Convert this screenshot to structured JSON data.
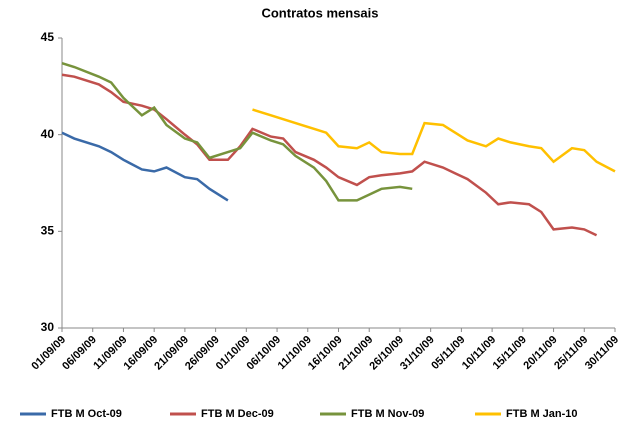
{
  "chart_data": {
    "type": "line",
    "title": "Contratos mensais",
    "x": [
      "01/09/09",
      "03/09/09",
      "07/09/09",
      "09/09/09",
      "11/09/09",
      "14/09/09",
      "16/09/09",
      "18/09/09",
      "21/09/09",
      "23/09/09",
      "25/09/09",
      "28/09/09",
      "30/09/09",
      "02/10/09",
      "05/10/09",
      "07/10/09",
      "09/10/09",
      "12/10/09",
      "14/10/09",
      "16/10/09",
      "19/10/09",
      "21/10/09",
      "23/10/09",
      "26/10/09",
      "28/10/09",
      "30/10/09",
      "02/11/09",
      "04/11/09",
      "06/11/09",
      "09/11/09",
      "11/11/09",
      "13/11/09",
      "16/11/09",
      "18/11/09",
      "20/11/09",
      "23/11/09",
      "25/11/09",
      "27/11/09",
      "30/11/09"
    ],
    "series": [
      {
        "name": "FTB M Oct-09",
        "color": "#3a6aa8",
        "values": [
          40.1,
          39.8,
          39.4,
          39.1,
          38.7,
          38.2,
          38.1,
          38.3,
          37.8,
          37.7,
          37.2,
          36.6,
          null,
          null,
          null,
          null,
          null,
          null,
          null,
          null,
          null,
          null,
          null,
          null,
          null,
          null,
          null,
          null,
          null,
          null,
          null,
          null,
          null,
          null,
          null,
          null,
          null,
          null,
          null
        ]
      },
      {
        "name": "FTB M Dec-09",
        "color": "#c0504d",
        "values": [
          43.1,
          43.0,
          42.6,
          42.2,
          41.7,
          41.5,
          41.3,
          40.8,
          40.0,
          39.5,
          38.7,
          38.7,
          39.4,
          40.3,
          39.9,
          39.8,
          39.1,
          38.7,
          38.3,
          37.8,
          37.4,
          37.8,
          37.9,
          38.0,
          38.1,
          38.6,
          38.3,
          38.0,
          37.7,
          37.0,
          36.4,
          36.5,
          36.4,
          36.0,
          35.1,
          35.2,
          35.1,
          34.8,
          null
        ]
      },
      {
        "name": "FTB M Nov-09",
        "color": "#77933c",
        "values": [
          43.7,
          43.5,
          43.0,
          42.7,
          41.9,
          41.0,
          41.4,
          40.5,
          39.8,
          39.6,
          38.8,
          39.1,
          39.3,
          40.1,
          39.7,
          39.5,
          38.9,
          38.3,
          37.6,
          36.6,
          36.6,
          36.9,
          37.2,
          37.3,
          37.2,
          null,
          null,
          null,
          null,
          null,
          null,
          null,
          null,
          null,
          null,
          null,
          null,
          null,
          null
        ]
      },
      {
        "name": "FTB M Jan-10",
        "color": "#ffc000",
        "values": [
          null,
          null,
          null,
          null,
          null,
          null,
          null,
          null,
          null,
          null,
          null,
          null,
          null,
          41.3,
          41.0,
          40.8,
          40.6,
          40.3,
          40.1,
          39.4,
          39.3,
          39.6,
          39.1,
          39.0,
          39.0,
          40.6,
          40.5,
          40.1,
          39.7,
          39.4,
          39.8,
          39.6,
          39.4,
          39.3,
          38.6,
          39.3,
          39.2,
          38.6,
          38.1
        ]
      }
    ],
    "xlim": [
      "01/09/09",
      "30/11/09"
    ],
    "xticks": [
      "01/09/09",
      "06/09/09",
      "11/09/09",
      "16/09/09",
      "21/09/09",
      "26/09/09",
      "01/10/09",
      "06/10/09",
      "11/10/09",
      "16/10/09",
      "21/10/09",
      "26/10/09",
      "31/10/09",
      "05/11/09",
      "10/11/09",
      "15/11/09",
      "20/11/09",
      "25/11/09",
      "30/11/09"
    ],
    "ylim": [
      30,
      45
    ],
    "yticks": [
      30,
      35,
      40,
      45
    ],
    "grid": false,
    "legend": "bottom"
  }
}
